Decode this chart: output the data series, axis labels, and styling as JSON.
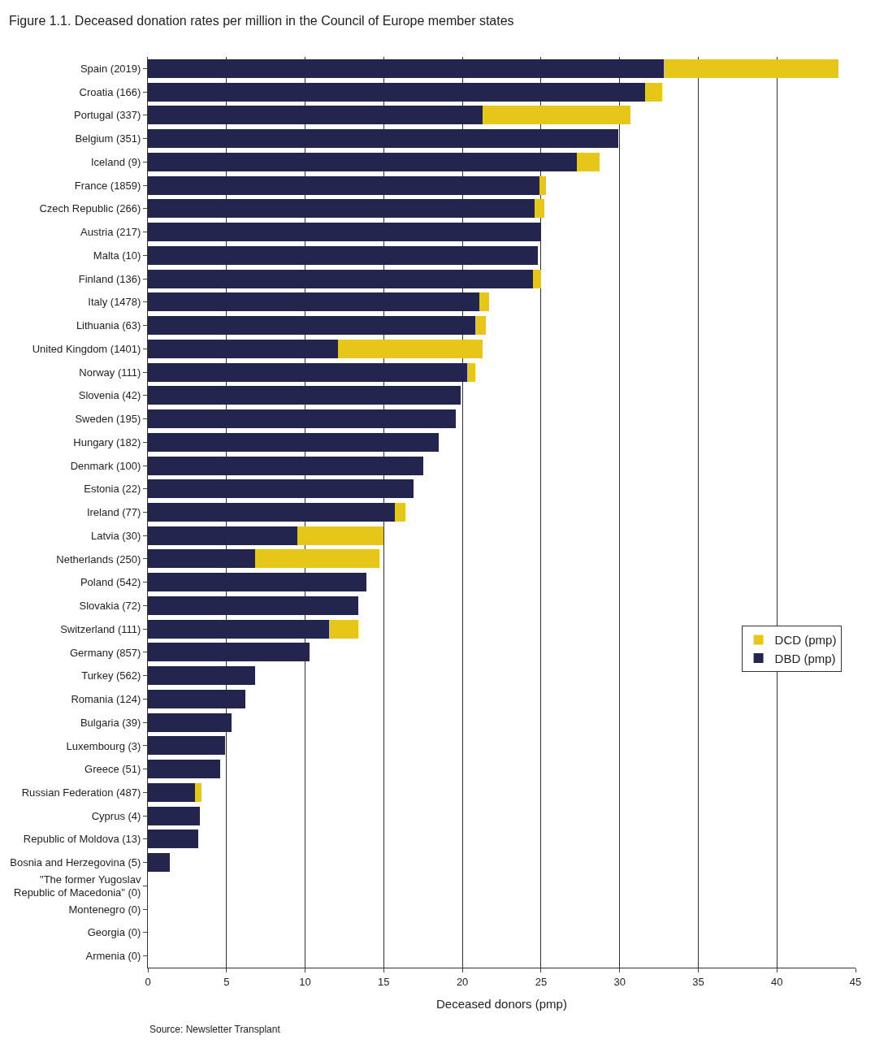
{
  "chart_data": {
    "type": "bar",
    "orientation": "horizontal",
    "stacked": true,
    "title": "Figure 1.1. Deceased donation rates per million in the Council of Europe member states",
    "xlabel": "Deceased donors (pmp)",
    "categories": [
      "Spain (2019)",
      "Croatia (166)",
      "Portugal (337)",
      "Belgium (351)",
      "Iceland (9)",
      "France (1859)",
      "Czech Republic (266)",
      "Austria (217)",
      "Malta (10)",
      "Finland (136)",
      "Italy (1478)",
      "Lithuania (63)",
      "United Kingdom (1401)",
      "Norway (111)",
      "Slovenia (42)",
      "Sweden (195)",
      "Hungary (182)",
      "Denmark (100)",
      "Estonia (22)",
      "Ireland (77)",
      "Latvia (30)",
      "Netherlands (250)",
      "Poland (542)",
      "Slovakia (72)",
      "Switzerland (111)",
      "Germany (857)",
      "Turkey (562)",
      "Romania (124)",
      "Bulgaria (39)",
      "Luxembourg (3)",
      "Greece (51)",
      "Russian Federation (487)",
      "Cyprus (4)",
      "Republic of Moldova (13)",
      "Bosnia and Herzegovina (5)",
      "\"The former Yugoslav Republic of Macedonia\" (0)",
      "Montenegro (0)",
      "Georgia (0)",
      "Armenia (0)"
    ],
    "series": [
      {
        "name": "DBD (pmp)",
        "color": "#23254f",
        "values": [
          32.8,
          31.6,
          21.3,
          29.9,
          27.3,
          24.9,
          24.6,
          25.0,
          24.8,
          24.5,
          21.1,
          20.8,
          12.1,
          20.3,
          19.9,
          19.6,
          18.5,
          17.5,
          16.9,
          15.7,
          9.5,
          6.8,
          13.9,
          13.4,
          11.5,
          10.3,
          6.8,
          6.2,
          5.3,
          4.9,
          4.6,
          3.0,
          3.3,
          3.2,
          1.4,
          0,
          0,
          0,
          0
        ]
      },
      {
        "name": "DCD (pmp)",
        "color": "#e6c619",
        "values": [
          11.1,
          1.1,
          9.4,
          null,
          1.4,
          0.4,
          0.6,
          null,
          null,
          0.5,
          0.6,
          0.7,
          9.2,
          0.5,
          null,
          null,
          null,
          null,
          null,
          0.7,
          5.5,
          7.9,
          null,
          null,
          1.9,
          null,
          null,
          null,
          null,
          null,
          null,
          0.4,
          null,
          null,
          null,
          null,
          null,
          null,
          null
        ]
      }
    ],
    "xlim": [
      0,
      45
    ],
    "xticks": [
      0,
      5,
      10,
      15,
      20,
      25,
      30,
      35,
      40,
      45
    ],
    "grid": "x",
    "legend": "right",
    "annotations": [
      "Source: Newsletter Transplant"
    ]
  }
}
